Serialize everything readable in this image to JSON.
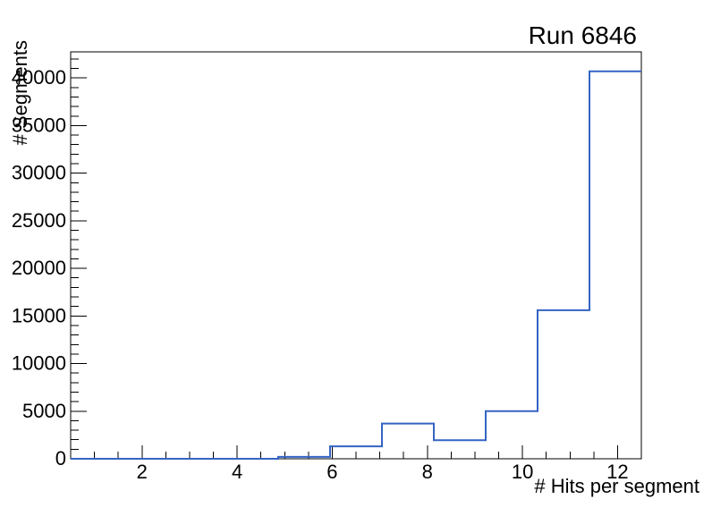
{
  "chart_data": {
    "type": "bar",
    "subtype": "step-histogram",
    "title": "Run 6846",
    "xlabel": "# Hits per segment",
    "ylabel": "# Segments",
    "x_range": [
      0.5,
      12.5
    ],
    "y_range": [
      0,
      42740
    ],
    "bin_edges": [
      0.5,
      1.5909,
      2.6818,
      3.7727,
      4.8636,
      5.9545,
      7.0455,
      8.1364,
      9.2273,
      10.3182,
      11.4091,
      12.5
    ],
    "values": [
      0,
      0,
      0,
      0,
      200,
      1300,
      3700,
      1950,
      5000,
      15600,
      40700
    ],
    "x_major_ticks": [
      2,
      4,
      6,
      8,
      10,
      12
    ],
    "x_major_tick_labels": [
      "2",
      "4",
      "6",
      "8",
      "10",
      "12"
    ],
    "x_minor_step": 0.5,
    "y_major_ticks": [
      0,
      5000,
      10000,
      15000,
      20000,
      25000,
      30000,
      35000,
      40000
    ],
    "y_major_tick_labels": [
      "0",
      "5000",
      "10000",
      "15000",
      "20000",
      "25000",
      "30000",
      "35000",
      "40000"
    ],
    "y_minor_step": 1000,
    "grid": false,
    "legend": null,
    "line_color": "#3464c4",
    "axis_color": "#000000",
    "background_color": "#ffffff"
  }
}
